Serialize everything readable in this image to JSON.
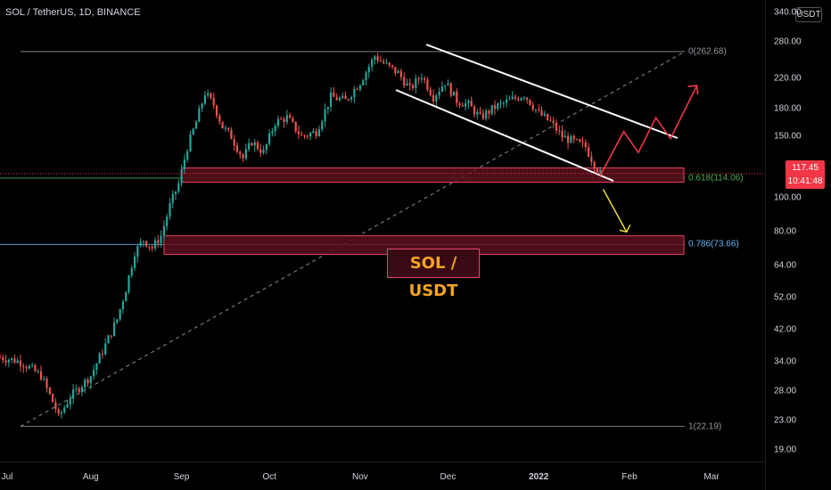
{
  "header": {
    "symbol_title": "SOL / TetherUS, 1D, BINANCE",
    "currency": "USDT"
  },
  "price_axis": {
    "labels": [
      "340.00",
      "280.00",
      "220.00",
      "180.00",
      "150.00",
      "117.45",
      "100.00",
      "80.00",
      "64.00",
      "52.00",
      "42.00",
      "34.00",
      "28.00",
      "23.00",
      "19.00"
    ],
    "last_price": "117.45",
    "countdown": "10:41:48"
  },
  "time_axis": {
    "labels": [
      "Jul",
      "Aug",
      "Sep",
      "Oct",
      "Nov",
      "Dec",
      "2022",
      "Feb",
      "Mar"
    ]
  },
  "fib_levels": [
    {
      "label": "0(262.68)",
      "ratio": 0,
      "price": 262.68,
      "color": "#9598a1"
    },
    {
      "label": "0.618(114.06)",
      "ratio": 0.618,
      "price": 114.06,
      "color": "#4caf50"
    },
    {
      "label": "0.786(73.66)",
      "ratio": 0.786,
      "price": 73.66,
      "color": "#64b5f6"
    },
    {
      "label": "1(22.19)",
      "ratio": 1,
      "price": 22.19,
      "color": "#9598a1"
    }
  ],
  "annotation": {
    "text": "SOL / USDT"
  },
  "colors": {
    "up": "#26a69a",
    "down": "#ef5350",
    "zone_fill": "#5c0f1c",
    "zone_border": "#e0415e",
    "channel": "#ffffff",
    "bull_path": "#f23645",
    "bear_arrow": "#f7e83a"
  },
  "chart_data": {
    "type": "candlestick",
    "title": "SOL / TetherUS, 1D, BINANCE",
    "y_scale": "log",
    "ylim": [
      19,
      340
    ],
    "x_range": [
      "2021-07-01",
      "2022-03-01"
    ],
    "last_price": 117.45,
    "support_zones": [
      {
        "low": 111,
        "high": 122
      },
      {
        "low": 69,
        "high": 78
      }
    ],
    "close_path": [
      [
        "2021-07-01",
        35
      ],
      [
        "2021-07-08",
        34
      ],
      [
        "2021-07-15",
        31
      ],
      [
        "2021-07-20",
        25
      ],
      [
        "2021-07-21",
        23.5
      ],
      [
        "2021-07-25",
        27
      ],
      [
        "2021-08-01",
        31
      ],
      [
        "2021-08-06",
        38
      ],
      [
        "2021-08-10",
        45
      ],
      [
        "2021-08-13",
        55
      ],
      [
        "2021-08-16",
        70
      ],
      [
        "2021-08-19",
        76
      ],
      [
        "2021-08-22",
        72
      ],
      [
        "2021-08-25",
        78
      ],
      [
        "2021-08-28",
        95
      ],
      [
        "2021-08-31",
        110
      ],
      [
        "2021-09-03",
        140
      ],
      [
        "2021-09-06",
        165
      ],
      [
        "2021-09-09",
        200
      ],
      [
        "2021-09-12",
        185
      ],
      [
        "2021-09-15",
        160
      ],
      [
        "2021-09-18",
        150
      ],
      [
        "2021-09-22",
        130
      ],
      [
        "2021-09-25",
        145
      ],
      [
        "2021-09-29",
        135
      ],
      [
        "2021-10-03",
        165
      ],
      [
        "2021-10-07",
        170
      ],
      [
        "2021-10-12",
        150
      ],
      [
        "2021-10-17",
        155
      ],
      [
        "2021-10-22",
        195
      ],
      [
        "2021-10-27",
        190
      ],
      [
        "2021-11-01",
        215
      ],
      [
        "2021-11-06",
        255
      ],
      [
        "2021-11-10",
        240
      ],
      [
        "2021-11-14",
        228
      ],
      [
        "2021-11-18",
        205
      ],
      [
        "2021-11-22",
        225
      ],
      [
        "2021-11-26",
        195
      ],
      [
        "2021-11-30",
        215
      ],
      [
        "2021-12-04",
        190
      ],
      [
        "2021-12-08",
        185
      ],
      [
        "2021-12-12",
        170
      ],
      [
        "2021-12-17",
        182
      ],
      [
        "2021-12-22",
        190
      ],
      [
        "2021-12-27",
        198
      ],
      [
        "2022-01-01",
        175
      ],
      [
        "2022-01-05",
        165
      ],
      [
        "2022-01-09",
        150
      ],
      [
        "2022-01-13",
        145
      ],
      [
        "2022-01-17",
        140
      ],
      [
        "2022-01-20",
        125
      ],
      [
        "2022-01-22",
        117.45
      ]
    ],
    "projections": [
      {
        "type": "bullish",
        "points": [
          [
            "2022-01-22",
            116
          ],
          [
            "2022-01-30",
            155
          ],
          [
            "2022-02-04",
            135
          ],
          [
            "2022-02-10",
            170
          ],
          [
            "2022-02-15",
            148
          ],
          [
            "2022-02-24",
            210
          ]
        ]
      },
      {
        "type": "bearish",
        "points": [
          [
            "2022-01-23",
            106
          ],
          [
            "2022-01-31",
            80
          ]
        ]
      }
    ]
  }
}
